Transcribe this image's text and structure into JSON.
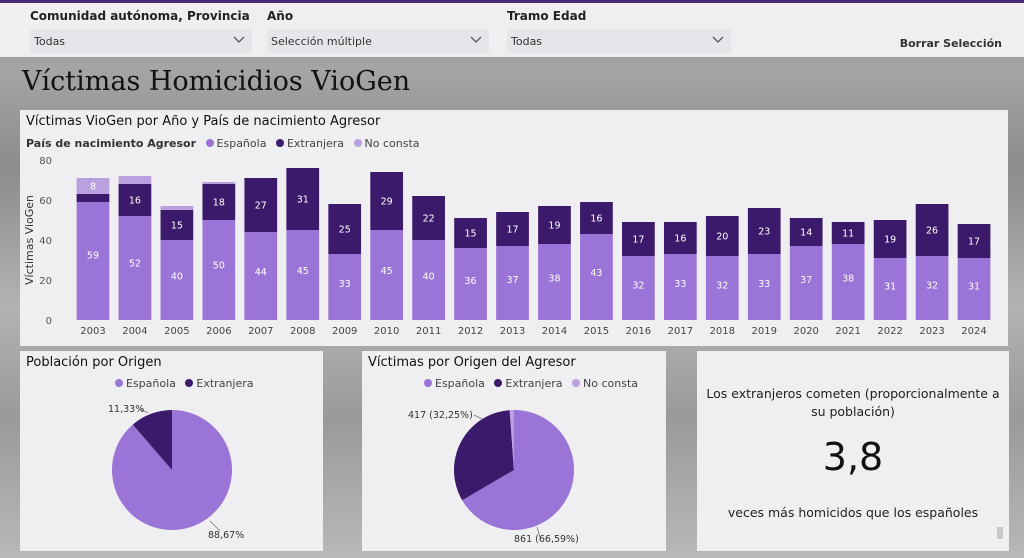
{
  "filters": {
    "region": {
      "label": "Comunidad autónoma, Provincia",
      "value": "Todas"
    },
    "year": {
      "label": "Año",
      "value": "Selección múltiple"
    },
    "age": {
      "label": "Tramo Edad",
      "value": "Todas"
    },
    "clear_label": "Borrar Selección"
  },
  "page_title": "Víctimas Homicidios VioGen",
  "colors": {
    "espanola": "#9a74d6",
    "extranjera": "#3b1a6b",
    "noconsta": "#b9a0df",
    "panel": "#efeff1",
    "accent": "#4b2a7a"
  },
  "bar_panel": {
    "title": "Víctimas VioGen por Año y País de nacimiento Agresor",
    "legend_title": "País de nacimiento Agresor",
    "legend": [
      "Española",
      "Extranjera",
      "No consta"
    ]
  },
  "chart_data": [
    {
      "type": "bar",
      "stacked": true,
      "title": "Víctimas VioGen por Año y País de nacimiento Agresor",
      "ylabel": "Víctimas VioGen",
      "ylim": [
        0,
        80
      ],
      "yticks": [
        0,
        20,
        40,
        60,
        80
      ],
      "categories": [
        "2003",
        "2004",
        "2005",
        "2006",
        "2007",
        "2008",
        "2009",
        "2010",
        "2011",
        "2012",
        "2013",
        "2014",
        "2015",
        "2016",
        "2017",
        "2018",
        "2019",
        "2020",
        "2021",
        "2022",
        "2023",
        "2024"
      ],
      "series": [
        {
          "name": "Española",
          "values": [
            59,
            52,
            40,
            50,
            44,
            45,
            33,
            45,
            40,
            36,
            37,
            38,
            43,
            32,
            33,
            32,
            33,
            37,
            38,
            31,
            32,
            31
          ],
          "labels": [
            "59",
            "52",
            "40",
            "50",
            "44",
            "45",
            "33",
            "45",
            "40",
            "36",
            "37",
            "38",
            "43",
            "32",
            "33",
            "32",
            "33",
            "37",
            "38",
            "31",
            "32",
            "31"
          ]
        },
        {
          "name": "Extranjera",
          "values": [
            4,
            16,
            15,
            18,
            27,
            31,
            25,
            29,
            22,
            15,
            17,
            19,
            16,
            17,
            16,
            20,
            23,
            14,
            11,
            19,
            26,
            17
          ],
          "labels": [
            "",
            "16",
            "15",
            "18",
            "27",
            "31",
            "25",
            "29",
            "22",
            "15",
            "17",
            "19",
            "16",
            "17",
            "16",
            "20",
            "23",
            "14",
            "11",
            "19",
            "26",
            "17"
          ]
        },
        {
          "name": "No consta",
          "values": [
            8,
            4,
            2,
            1,
            0,
            0,
            0,
            0,
            0,
            0,
            0,
            0,
            0,
            0,
            0,
            0,
            0,
            0,
            0,
            0,
            0,
            0
          ],
          "labels": [
            "8",
            "",
            "",
            "",
            "",
            "",
            "",
            "",
            "",
            "",
            "",
            "",
            "",
            "",
            "",
            "",
            "",
            "",
            "",
            "",
            "",
            ""
          ]
        }
      ],
      "legend_position": "top-left"
    },
    {
      "type": "pie",
      "title": "Población por Origen",
      "categories": [
        "Española",
        "Extranjera"
      ],
      "values": [
        88.67,
        11.33
      ],
      "labels": [
        "88,67%",
        "11,33%"
      ]
    },
    {
      "type": "pie",
      "title": "Víctimas por Origen del Agresor",
      "categories": [
        "Española",
        "Extranjera",
        "No consta"
      ],
      "values": [
        861,
        417,
        15
      ],
      "labels": [
        "861 (66,59%)",
        "417 (32,25%)",
        ""
      ]
    }
  ],
  "pie1": {
    "title": "Población por Origen",
    "legend": [
      "Española",
      "Extranjera"
    ]
  },
  "pie2": {
    "title": "Víctimas por Origen del Agresor",
    "legend": [
      "Española",
      "Extranjera",
      "No consta"
    ]
  },
  "kpi": {
    "heading": "Los extranjeros cometen (proporcionalmente a su población)",
    "value": "3,8",
    "caption": "veces más homicidos que los españoles"
  }
}
